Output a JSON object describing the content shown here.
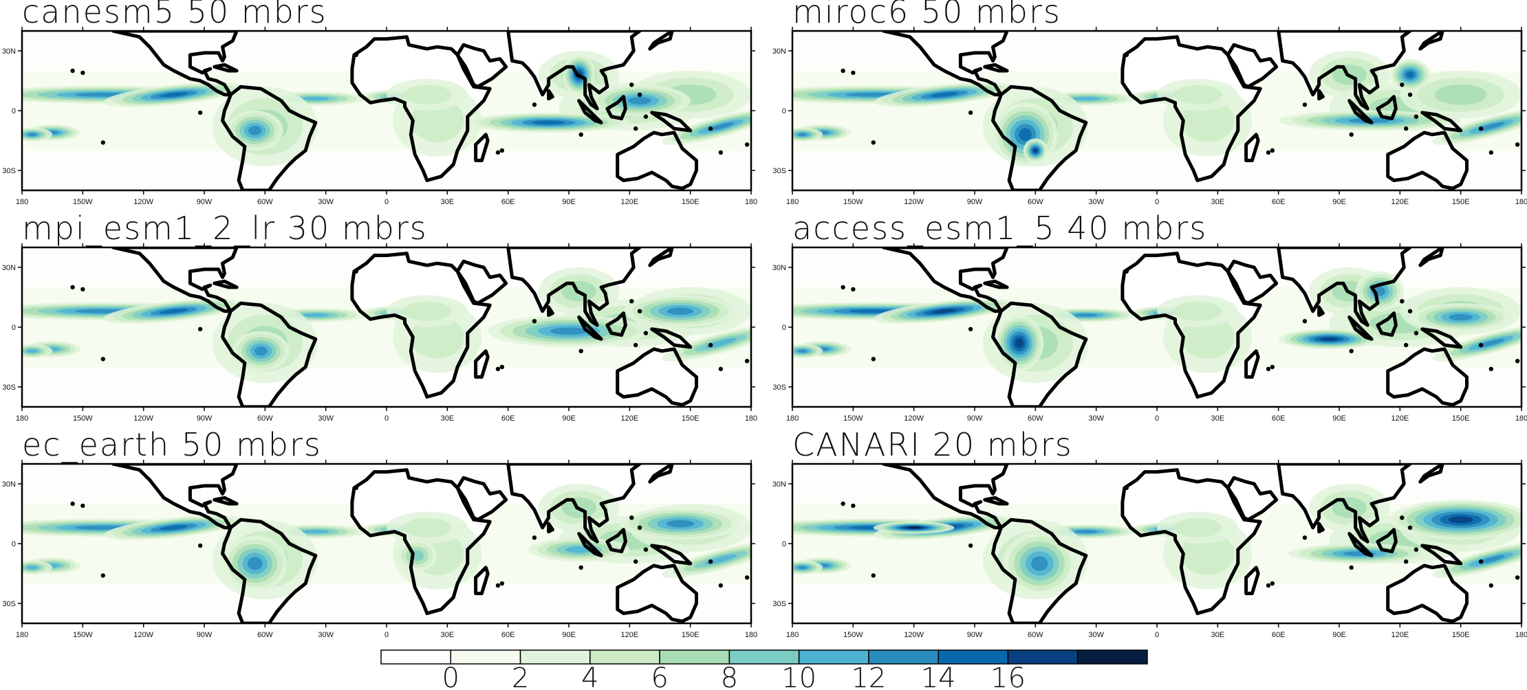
{
  "panels": [
    {
      "id": "canesm5",
      "title": "canesm5 50 mbrs"
    },
    {
      "id": "miroc6",
      "title": "miroc6 50 mbrs"
    },
    {
      "id": "mpi",
      "title": "mpi_esm1_2_lr 30 mbrs"
    },
    {
      "id": "access",
      "title": "access_esm1_5 40 mbrs"
    },
    {
      "id": "ecearth",
      "title": "ec_earth 50 mbrs"
    },
    {
      "id": "canari",
      "title": "CANARI 20 mbrs"
    }
  ],
  "lon_ticks": [
    "180",
    "150W",
    "120W",
    "90W",
    "60W",
    "30W",
    "0",
    "30E",
    "60E",
    "90E",
    "120E",
    "150E",
    "180"
  ],
  "lat_ticks": [
    "30N",
    "0",
    "30S"
  ],
  "colorbar": {
    "labels": [
      "0",
      "2",
      "4",
      "6",
      "8",
      "10",
      "12",
      "14",
      "16"
    ],
    "colors": [
      "#ffffff",
      "#f7fcf0",
      "#e0f3db",
      "#ccebc5",
      "#a8ddb5",
      "#7bccc4",
      "#4eb3d3",
      "#2b8cbe",
      "#0868ac",
      "#084081",
      "#061d3f"
    ]
  },
  "style": {
    "coast_color": "#000000",
    "land_fill": "#ffffff",
    "ocean_base": "#f7fcf0"
  }
}
